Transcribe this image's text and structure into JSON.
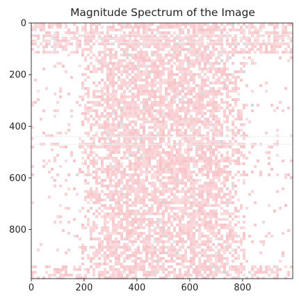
{
  "chart_data": {
    "type": "heatmap",
    "title": "Magnitude Spectrum of the Image",
    "xlabel": "",
    "ylabel": "",
    "xlim": [
      0,
      990
    ],
    "ylim": [
      990,
      0
    ],
    "x_ticks": [
      0,
      200,
      400,
      600,
      800
    ],
    "y_ticks": [
      0,
      200,
      400,
      600,
      800
    ],
    "grid": false,
    "legend": "none",
    "colormap": {
      "low": "#ffffff",
      "high": "#f7c4c8",
      "accent": "#d0d7da"
    },
    "features": {
      "dense_center_band_columns": [
        180,
        810
      ],
      "dense_core_columns": [
        280,
        700
      ],
      "bright_horizontal_rows": [
        50,
        70,
        305,
        335,
        430,
        470,
        520,
        580
      ],
      "dark_horizontal_rows": [
        45,
        60,
        75,
        440,
        470
      ]
    }
  }
}
